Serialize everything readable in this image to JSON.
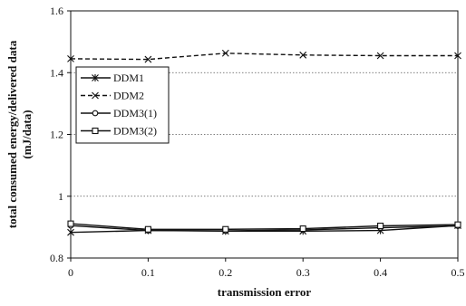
{
  "chart_data": {
    "type": "line",
    "title": "",
    "xlabel": "transmission error",
    "ylabel_lines": [
      "total consumed energy/delivered data",
      "(mJ/data)"
    ],
    "x": [
      0,
      0.1,
      0.2,
      0.3,
      0.4,
      0.5
    ],
    "x_ticks": [
      "0",
      "0.1",
      "0.2",
      "0.3",
      "0.4",
      "0.5"
    ],
    "ylim": [
      0.8,
      1.6
    ],
    "y_ticks": [
      "0.8",
      "1",
      "1.2",
      "1.4",
      "1.6"
    ],
    "y_tick_values": [
      0.8,
      1.0,
      1.2,
      1.4,
      1.6
    ],
    "grid": "horizontal-dotted",
    "legend_position": "upper-left",
    "series": [
      {
        "name": "DDM1",
        "values": [
          0.883,
          0.889,
          0.887,
          0.887,
          0.889,
          0.905
        ],
        "marker": "star",
        "dash": "solid",
        "stroke": "#111111"
      },
      {
        "name": "DDM2",
        "values": [
          1.445,
          1.443,
          1.463,
          1.457,
          1.455,
          1.455
        ],
        "marker": "x",
        "dash": "dashed",
        "stroke": "#111111"
      },
      {
        "name": "DDM3(1)",
        "values": [
          0.905,
          0.889,
          0.888,
          0.891,
          0.898,
          0.904
        ],
        "marker": "circle",
        "dash": "solid",
        "stroke": "#111111"
      },
      {
        "name": "DDM3(2)",
        "values": [
          0.911,
          0.893,
          0.893,
          0.895,
          0.904,
          0.908
        ],
        "marker": "square",
        "dash": "solid",
        "stroke": "#111111"
      }
    ]
  }
}
